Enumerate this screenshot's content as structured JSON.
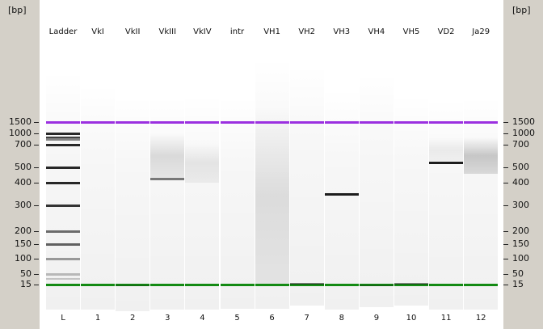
{
  "axis": {
    "unit_label": "[bp]",
    "ticks": [
      1500,
      1000,
      700,
      500,
      400,
      300,
      200,
      150,
      100,
      50,
      15
    ]
  },
  "colors": {
    "upper_marker": "#9b30e0",
    "lower_marker": "#138a13",
    "frame": "#d4d0c8",
    "band": "#111111"
  },
  "lanes": [
    {
      "label": "Ladder",
      "number": "L"
    },
    {
      "label": "VkI",
      "number": "1"
    },
    {
      "label": "VkII",
      "number": "2"
    },
    {
      "label": "VkIII",
      "number": "3"
    },
    {
      "label": "VkIV",
      "number": "4"
    },
    {
      "label": "intr",
      "number": "5"
    },
    {
      "label": "VH1",
      "number": "6"
    },
    {
      "label": "VH2",
      "number": "7"
    },
    {
      "label": "VH3",
      "number": "8"
    },
    {
      "label": "VH4",
      "number": "9"
    },
    {
      "label": "VH5",
      "number": "10"
    },
    {
      "label": "VD2",
      "number": "11"
    },
    {
      "label": "Ja29",
      "number": "12"
    }
  ],
  "markers": {
    "upper_bp": 1500,
    "lower_bp": 15
  },
  "bands": [
    {
      "lane": 0,
      "bp": 1000,
      "intensity": 0.9
    },
    {
      "lane": 0,
      "bp": 900,
      "intensity": 0.8
    },
    {
      "lane": 0,
      "bp": 850,
      "intensity": 0.5
    },
    {
      "lane": 0,
      "bp": 700,
      "intensity": 0.9
    },
    {
      "lane": 0,
      "bp": 500,
      "intensity": 0.9
    },
    {
      "lane": 0,
      "bp": 400,
      "intensity": 0.9
    },
    {
      "lane": 0,
      "bp": 300,
      "intensity": 0.85
    },
    {
      "lane": 0,
      "bp": 200,
      "intensity": 0.6
    },
    {
      "lane": 0,
      "bp": 150,
      "intensity": 0.65
    },
    {
      "lane": 0,
      "bp": 100,
      "intensity": 0.4
    },
    {
      "lane": 0,
      "bp": 50,
      "intensity": 0.25
    },
    {
      "lane": 0,
      "bp": 35,
      "intensity": 0.2
    },
    {
      "lane": 3,
      "bp": 425,
      "intensity": 0.55
    },
    {
      "lane": 8,
      "bp": 350,
      "intensity": 0.95
    },
    {
      "lane": 11,
      "bp": 540,
      "intensity": 0.95
    },
    {
      "lane": 7,
      "bp": 18,
      "intensity": 0.5
    },
    {
      "lane": 10,
      "bp": 18,
      "intensity": 0.45
    },
    {
      "lane": 9,
      "bp": 14,
      "intensity": 0.25
    },
    {
      "lane": 2,
      "bp": 14,
      "intensity": 0.2
    }
  ],
  "smears": [
    {
      "lane": 3,
      "from_bp": 1000,
      "to_bp": 430,
      "intensity": 0.12
    },
    {
      "lane": 4,
      "from_bp": 750,
      "to_bp": 400,
      "intensity": 0.08
    },
    {
      "lane": 6,
      "from_bp": 2000,
      "to_bp": 15,
      "intensity": 0.1
    },
    {
      "lane": 12,
      "from_bp": 900,
      "to_bp": 460,
      "intensity": 0.2
    },
    {
      "lane": 11,
      "from_bp": 900,
      "to_bp": 560,
      "intensity": 0.06
    }
  ]
}
